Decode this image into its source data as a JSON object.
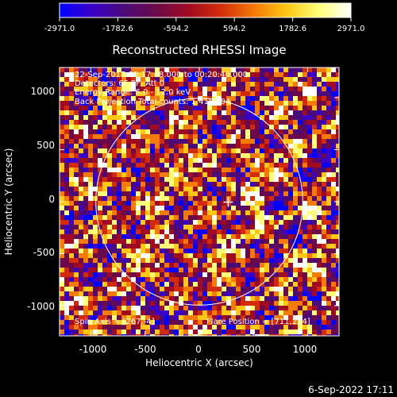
{
  "colorbar": {
    "ticks": [
      "-2971.0",
      "-1782.6",
      "-594.2",
      "594.2",
      "1782.6",
      "2971.0"
    ],
    "min": -2971.0,
    "max": 2971.0,
    "colormap": [
      "#0000ff",
      "#3a00c8",
      "#4b0a7a",
      "#6a0a4a",
      "#a00a22",
      "#d42a0c",
      "#f57a06",
      "#ffc814",
      "#ffff78",
      "#ffffff"
    ]
  },
  "title": "Reconstructed RHESSI Image",
  "info_lines": [
    "22-Sep-2017 00:17:48.000 to 00:20:40.000",
    "Detectors: 6F 8F, Att 0",
    "Energy Range: 6.0 - 12.0 keV",
    "Back Projection    Total counts: 1.41E+04"
  ],
  "spin_axis": "Spin Axis = [267,-4]",
  "flare_position": "Flare Position = [711,214]",
  "x_axis": {
    "label": "Heliocentric X (arcsec)",
    "ticks": [
      "-1000",
      "-500",
      "0",
      "500",
      "1000"
    ],
    "range": [
      -1290,
      1290
    ]
  },
  "y_axis": {
    "label": "Heliocentric Y (arcsec)",
    "ticks": [
      "1000",
      "500",
      "0",
      "-500",
      "-1000"
    ],
    "range": [
      -1290,
      1290
    ]
  },
  "solar_limb_radius_arcsec": 955,
  "spin_axis_marker": [
    267,
    -4
  ],
  "footer_timestamp": "6-Sep-2022 17:11",
  "colors": {
    "background": "#000000",
    "foreground": "#ffffff"
  }
}
